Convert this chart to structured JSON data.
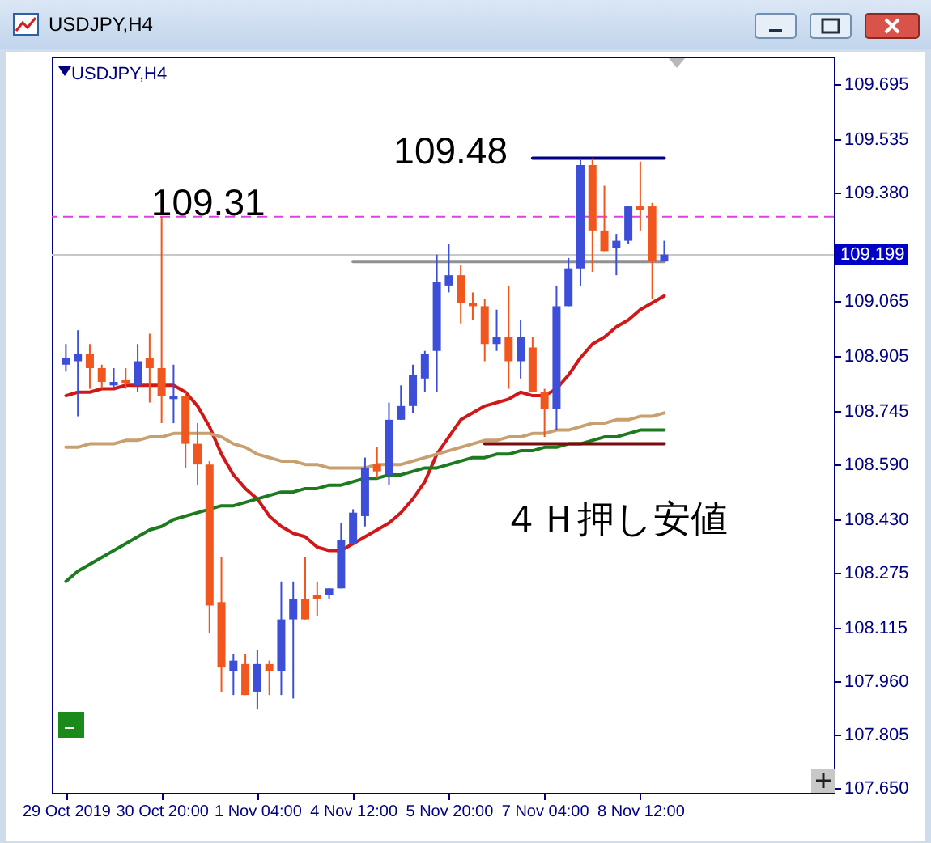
{
  "chart_data": {
    "type": "candlestick",
    "title": "USDJPY,H4",
    "subtitle": "USDJPY,H4",
    "categories": [
      "29 Oct 2019",
      null,
      null,
      null,
      null,
      null,
      null,
      null,
      "30 Oct 20:00",
      null,
      null,
      null,
      null,
      null,
      null,
      null,
      "1 Nov 04:00",
      null,
      null,
      null,
      null,
      null,
      null,
      null,
      "4 Nov 12:00",
      null,
      null,
      null,
      null,
      null,
      null,
      null,
      "5 Nov 20:00",
      null,
      null,
      null,
      null,
      null,
      null,
      null,
      "7 Nov 04:00",
      null,
      null,
      null,
      null,
      null,
      null,
      null,
      "8 Nov 12:00",
      null,
      null
    ],
    "ohlc": [
      [
        108.88,
        108.94,
        108.86,
        108.9
      ],
      [
        108.89,
        108.98,
        108.73,
        108.91
      ],
      [
        108.91,
        108.94,
        108.81,
        108.87
      ],
      [
        108.87,
        108.88,
        108.81,
        108.83
      ],
      [
        108.82,
        108.87,
        108.81,
        108.83
      ],
      [
        108.835,
        108.87,
        108.81,
        108.825
      ],
      [
        108.82,
        108.94,
        108.8,
        108.89
      ],
      [
        108.9,
        108.97,
        108.77,
        108.87
      ],
      [
        108.87,
        109.31,
        108.71,
        108.79
      ],
      [
        108.78,
        108.88,
        108.71,
        108.79
      ],
      [
        108.79,
        108.8,
        108.58,
        108.65
      ],
      [
        108.65,
        108.71,
        108.53,
        108.59
      ],
      [
        108.59,
        108.6,
        108.1,
        108.18
      ],
      [
        108.19,
        108.32,
        107.93,
        108.0
      ],
      [
        107.99,
        108.04,
        107.92,
        108.02
      ],
      [
        108.01,
        108.04,
        107.92,
        107.92
      ],
      [
        107.93,
        108.05,
        107.88,
        108.01
      ],
      [
        108.01,
        108.02,
        107.92,
        107.99
      ],
      [
        107.99,
        108.25,
        107.92,
        108.14
      ],
      [
        108.14,
        108.25,
        107.91,
        108.2
      ],
      [
        108.2,
        108.32,
        108.14,
        108.14
      ],
      [
        108.21,
        108.25,
        108.15,
        108.2
      ],
      [
        108.21,
        108.23,
        108.2,
        108.23
      ],
      [
        108.23,
        108.42,
        108.23,
        108.37
      ],
      [
        108.36,
        108.46,
        108.36,
        108.45
      ],
      [
        108.44,
        108.61,
        108.41,
        108.58
      ],
      [
        108.59,
        108.64,
        108.55,
        108.57
      ],
      [
        108.56,
        108.77,
        108.53,
        108.72
      ],
      [
        108.72,
        108.82,
        108.72,
        108.76
      ],
      [
        108.76,
        108.88,
        108.74,
        108.85
      ],
      [
        108.84,
        108.92,
        108.8,
        108.91
      ],
      [
        108.92,
        109.2,
        108.8,
        109.12
      ],
      [
        109.11,
        109.23,
        109.09,
        109.14
      ],
      [
        109.14,
        109.17,
        109.0,
        109.06
      ],
      [
        109.06,
        109.09,
        109.01,
        109.05
      ],
      [
        109.05,
        109.07,
        108.89,
        108.94
      ],
      [
        108.94,
        109.04,
        108.92,
        108.96
      ],
      [
        108.96,
        109.11,
        108.81,
        108.89
      ],
      [
        108.89,
        109.01,
        108.84,
        108.96
      ],
      [
        108.93,
        108.96,
        108.8,
        108.8
      ],
      [
        108.8,
        108.81,
        108.67,
        108.75
      ],
      [
        108.75,
        109.11,
        108.69,
        109.05
      ],
      [
        109.05,
        109.19,
        109.05,
        109.16
      ],
      [
        109.16,
        109.48,
        109.11,
        109.46
      ],
      [
        109.46,
        109.48,
        109.15,
        109.27
      ],
      [
        109.27,
        109.4,
        109.21,
        109.21
      ],
      [
        109.22,
        109.26,
        109.14,
        109.24
      ],
      [
        109.24,
        109.34,
        109.23,
        109.34
      ],
      [
        109.34,
        109.47,
        109.27,
        109.33
      ],
      [
        109.34,
        109.35,
        109.07,
        109.18
      ],
      [
        109.18,
        109.24,
        109.18,
        109.2
      ]
    ],
    "colors": [
      "#3d4ed8",
      "#3d4ed8",
      "#f0561e",
      "#f0561e",
      "#3d4ed8",
      "#f0561e",
      "#3d4ed8",
      "#f0561e",
      "#f0561e",
      "#3d4ed8",
      "#f0561e",
      "#f0561e",
      "#f0561e",
      "#f0561e",
      "#3d4ed8",
      "#f0561e",
      "#3d4ed8",
      "#f0561e",
      "#3d4ed8",
      "#3d4ed8",
      "#f0561e",
      "#f0561e",
      "#3d4ed8",
      "#3d4ed8",
      "#3d4ed8",
      "#3d4ed8",
      "#f0561e",
      "#3d4ed8",
      "#3d4ed8",
      "#3d4ed8",
      "#3d4ed8",
      "#3d4ed8",
      "#3d4ed8",
      "#f0561e",
      "#f0561e",
      "#f0561e",
      "#3d4ed8",
      "#f0561e",
      "#3d4ed8",
      "#f0561e",
      "#f0561e",
      "#3d4ed8",
      "#3d4ed8",
      "#3d4ed8",
      "#f0561e",
      "#f0561e",
      "#3d4ed8",
      "#3d4ed8",
      "#f0561e",
      "#f0561e",
      "#3d4ed8"
    ],
    "series": [
      {
        "type": "line",
        "color": "#d01818",
        "values": [
          108.79,
          108.8,
          108.8,
          108.81,
          108.81,
          108.82,
          108.82,
          108.82,
          108.82,
          108.82,
          108.8,
          108.76,
          108.7,
          108.62,
          108.56,
          108.52,
          108.49,
          108.44,
          108.41,
          108.39,
          108.38,
          108.35,
          108.34,
          108.34,
          108.36,
          108.38,
          108.4,
          108.42,
          108.45,
          108.49,
          108.54,
          108.62,
          108.67,
          108.72,
          108.74,
          108.76,
          108.77,
          108.78,
          108.8,
          108.79,
          108.79,
          108.81,
          108.85,
          108.9,
          108.94,
          108.96,
          108.99,
          109.01,
          109.04,
          109.06,
          109.08
        ]
      },
      {
        "type": "line",
        "color": "#c8a070",
        "values": [
          108.64,
          108.64,
          108.65,
          108.65,
          108.65,
          108.66,
          108.66,
          108.67,
          108.67,
          108.68,
          108.68,
          108.68,
          108.68,
          108.67,
          108.65,
          108.64,
          108.62,
          108.61,
          108.6,
          108.6,
          108.59,
          108.59,
          108.58,
          108.58,
          108.58,
          108.58,
          108.59,
          108.59,
          108.59,
          108.6,
          108.61,
          108.62,
          108.63,
          108.64,
          108.65,
          108.66,
          108.66,
          108.67,
          108.67,
          108.68,
          108.68,
          108.69,
          108.69,
          108.7,
          108.71,
          108.71,
          108.72,
          108.72,
          108.73,
          108.73,
          108.74
        ]
      },
      {
        "type": "line",
        "color": "#1e7a1e",
        "values": [
          108.25,
          108.28,
          108.3,
          108.32,
          108.34,
          108.36,
          108.38,
          108.4,
          108.41,
          108.43,
          108.44,
          108.45,
          108.46,
          108.47,
          108.47,
          108.48,
          108.49,
          108.5,
          108.51,
          108.51,
          108.52,
          108.52,
          108.53,
          108.53,
          108.54,
          108.55,
          108.55,
          108.56,
          108.56,
          108.57,
          108.58,
          108.58,
          108.59,
          108.6,
          108.61,
          108.61,
          108.62,
          108.62,
          108.63,
          108.63,
          108.64,
          108.64,
          108.65,
          108.65,
          108.66,
          108.67,
          108.67,
          108.68,
          108.69,
          108.69,
          108.69
        ]
      },
      {
        "type": "line",
        "color": "#909090",
        "values": [
          null,
          null,
          null,
          null,
          null,
          null,
          null,
          null,
          null,
          null,
          null,
          null,
          null,
          null,
          null,
          null,
          null,
          null,
          null,
          null,
          null,
          null,
          null,
          null,
          109.18,
          109.18,
          109.18,
          109.18,
          109.18,
          109.18,
          109.18,
          109.18,
          109.18,
          109.18,
          109.18,
          109.18,
          109.18,
          109.18,
          109.18,
          109.18,
          109.18,
          109.18,
          109.18,
          109.18,
          109.18,
          109.18,
          109.18,
          109.18,
          109.18,
          109.18,
          109.18
        ]
      },
      {
        "type": "line",
        "color": "#000080",
        "values": [
          null,
          null,
          null,
          null,
          null,
          null,
          null,
          null,
          null,
          null,
          null,
          null,
          null,
          null,
          null,
          null,
          null,
          null,
          null,
          null,
          null,
          null,
          null,
          null,
          null,
          null,
          null,
          null,
          null,
          null,
          null,
          null,
          null,
          null,
          null,
          null,
          null,
          null,
          null,
          109.48,
          109.48,
          109.48,
          109.48,
          109.48,
          109.48,
          109.48,
          109.48,
          109.48,
          109.48,
          109.48,
          109.48
        ]
      },
      {
        "type": "line",
        "color": "#7a0c0c",
        "values": [
          null,
          null,
          null,
          null,
          null,
          null,
          null,
          null,
          null,
          null,
          null,
          null,
          null,
          null,
          null,
          null,
          null,
          null,
          null,
          null,
          null,
          null,
          null,
          null,
          null,
          null,
          null,
          null,
          null,
          null,
          null,
          null,
          null,
          null,
          null,
          108.65,
          108.65,
          108.65,
          108.65,
          108.65,
          108.65,
          108.65,
          108.65,
          108.65,
          108.65,
          108.65,
          108.65,
          108.65,
          108.65,
          108.65,
          108.65
        ]
      }
    ],
    "ylim": [
      107.636,
      109.775
    ],
    "yticks": [
      {
        "value": 107.65,
        "label": "107.650"
      },
      {
        "value": 107.805,
        "label": "107.805"
      },
      {
        "value": 107.96,
        "label": "107.960"
      },
      {
        "value": 108.115,
        "label": "108.115"
      },
      {
        "value": 108.275,
        "label": "108.275"
      },
      {
        "value": 108.43,
        "label": "108.430"
      },
      {
        "value": 108.59,
        "label": "108.590"
      },
      {
        "value": 108.745,
        "label": "108.745"
      },
      {
        "value": 108.905,
        "label": "108.905"
      },
      {
        "value": 109.065,
        "label": "109.065"
      },
      {
        "value": 109.38,
        "label": "109.380"
      },
      {
        "value": 109.535,
        "label": "109.535"
      },
      {
        "value": 109.695,
        "label": "109.695"
      }
    ],
    "ref_lines": [
      {
        "axis": "y",
        "value": 109.31,
        "color": "#e040e0",
        "line_style": "dashed"
      },
      {
        "axis": "y",
        "value": 109.199,
        "label": "109.199",
        "color": "#c8c8c8"
      }
    ],
    "annotations": [
      "109.31",
      "109.48",
      "４Ｈ押し安値"
    ]
  }
}
